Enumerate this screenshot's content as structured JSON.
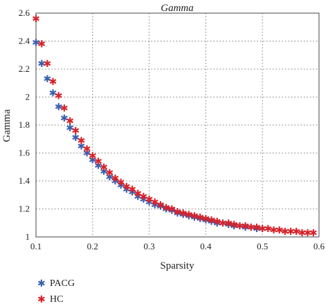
{
  "chart_data": {
    "type": "scatter",
    "title": "Gamma",
    "xlabel": "Sparsity",
    "ylabel": "Gamma",
    "xlim": [
      0.1,
      0.6
    ],
    "ylim": [
      1.0,
      2.6
    ],
    "xticks": [
      "0.1",
      "0.2",
      "0.3",
      "0.4",
      "0.5",
      "0.6"
    ],
    "yticks": [
      "1",
      "1.2",
      "1.4",
      "1.6",
      "1.8",
      "2",
      "2.2",
      "2.4",
      "2.6"
    ],
    "grid": true,
    "legend_position": "bottom-left",
    "marker": "*",
    "series": [
      {
        "name": "PACG",
        "color": "#3a5fb0",
        "x": [
          0.1,
          0.11,
          0.12,
          0.13,
          0.14,
          0.15,
          0.16,
          0.17,
          0.18,
          0.19,
          0.2,
          0.21,
          0.22,
          0.23,
          0.24,
          0.25,
          0.26,
          0.27,
          0.28,
          0.29,
          0.3,
          0.31,
          0.32,
          0.33,
          0.34,
          0.35,
          0.36,
          0.37,
          0.38,
          0.39,
          0.4,
          0.41,
          0.42,
          0.43,
          0.44,
          0.45,
          0.46,
          0.47,
          0.48,
          0.49,
          0.5
        ],
        "y": [
          2.39,
          2.24,
          2.13,
          2.03,
          1.93,
          1.85,
          1.78,
          1.71,
          1.65,
          1.6,
          1.55,
          1.51,
          1.47,
          1.43,
          1.4,
          1.37,
          1.34,
          1.32,
          1.29,
          1.27,
          1.25,
          1.23,
          1.22,
          1.2,
          1.19,
          1.17,
          1.16,
          1.15,
          1.14,
          1.13,
          1.12,
          1.11,
          1.1,
          1.1,
          1.09,
          1.08,
          1.08,
          1.07,
          1.07,
          1.06,
          1.06
        ]
      },
      {
        "name": "HC",
        "color": "#d8232a",
        "x": [
          0.1,
          0.11,
          0.12,
          0.13,
          0.14,
          0.15,
          0.16,
          0.17,
          0.18,
          0.19,
          0.2,
          0.21,
          0.22,
          0.23,
          0.24,
          0.25,
          0.26,
          0.27,
          0.28,
          0.29,
          0.3,
          0.31,
          0.32,
          0.33,
          0.34,
          0.35,
          0.36,
          0.37,
          0.38,
          0.39,
          0.4,
          0.41,
          0.42,
          0.43,
          0.44,
          0.45,
          0.46,
          0.47,
          0.48,
          0.49,
          0.5,
          0.51,
          0.52,
          0.53,
          0.54,
          0.55,
          0.56,
          0.57,
          0.58,
          0.59
        ],
        "y": [
          2.56,
          2.38,
          2.24,
          2.11,
          2.01,
          1.92,
          1.83,
          1.76,
          1.69,
          1.63,
          1.58,
          1.54,
          1.5,
          1.46,
          1.42,
          1.39,
          1.36,
          1.34,
          1.31,
          1.29,
          1.27,
          1.25,
          1.23,
          1.21,
          1.2,
          1.18,
          1.17,
          1.16,
          1.15,
          1.14,
          1.13,
          1.12,
          1.11,
          1.1,
          1.1,
          1.09,
          1.08,
          1.08,
          1.07,
          1.07,
          1.06,
          1.06,
          1.05,
          1.05,
          1.04,
          1.04,
          1.04,
          1.03,
          1.03,
          1.03
        ]
      }
    ]
  }
}
